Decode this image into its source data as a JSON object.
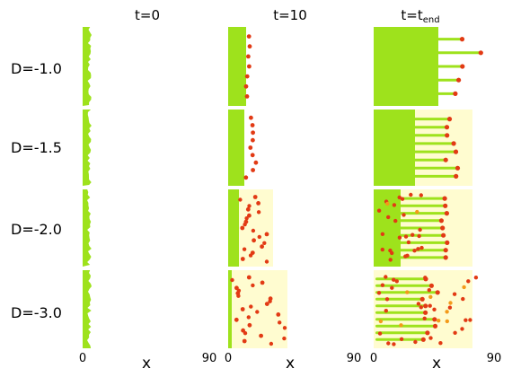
{
  "columns": [
    {
      "label": "t=0"
    },
    {
      "label": "t=10"
    },
    {
      "label": "t=t",
      "sub": "end"
    }
  ],
  "rows": [
    {
      "label": "D=-1.0"
    },
    {
      "label": "D=-1.5"
    },
    {
      "label": "D=-2.0"
    },
    {
      "label": "D=-3.0"
    }
  ],
  "x_axis": {
    "label": "x",
    "tick_min": "0",
    "tick_max": "90"
  },
  "colors": {
    "green": "#9ee21c",
    "yellow": "#fffcd0",
    "red": "#e23a14",
    "orange": "#f39a1a",
    "divider": "#ffffff"
  }
}
